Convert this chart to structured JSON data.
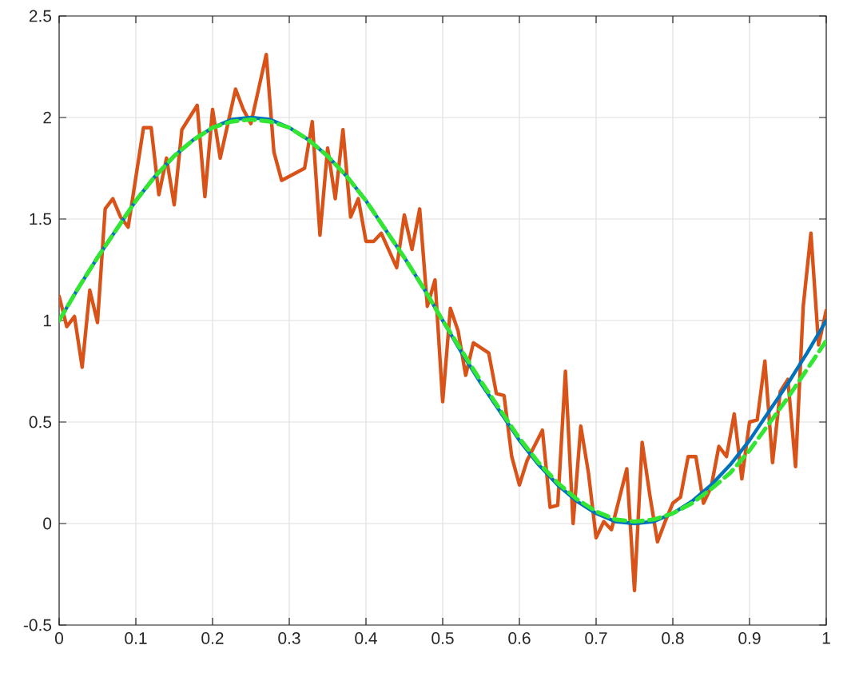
{
  "chart_data": {
    "type": "line",
    "xlim": [
      0,
      1
    ],
    "ylim": [
      -0.5,
      2.5
    ],
    "xticks": [
      0,
      0.1,
      0.2,
      0.3,
      0.4,
      0.5,
      0.6,
      0.7,
      0.8,
      0.9,
      1
    ],
    "yticks": [
      -0.5,
      0,
      0.5,
      1,
      1.5,
      2,
      2.5
    ],
    "grid": true,
    "series": [
      {
        "color": "#d95319",
        "line_style": "solid",
        "x": [
          0,
          0.01,
          0.02,
          0.03,
          0.04,
          0.05,
          0.06,
          0.07,
          0.08,
          0.09,
          0.11,
          0.12,
          0.13,
          0.14,
          0.15,
          0.16,
          0.18,
          0.19,
          0.2,
          0.21,
          0.23,
          0.24,
          0.25,
          0.27,
          0.28,
          0.29,
          0.32,
          0.33,
          0.34,
          0.35,
          0.36,
          0.37,
          0.38,
          0.39,
          0.4,
          0.41,
          0.42,
          0.44,
          0.45,
          0.46,
          0.47,
          0.48,
          0.49,
          0.5,
          0.51,
          0.52,
          0.53,
          0.54,
          0.56,
          0.57,
          0.58,
          0.59,
          0.6,
          0.61,
          0.63,
          0.64,
          0.65,
          0.66,
          0.67,
          0.68,
          0.69,
          0.7,
          0.71,
          0.72,
          0.74,
          0.75,
          0.76,
          0.77,
          0.78,
          0.79,
          0.8,
          0.81,
          0.82,
          0.83,
          0.84,
          0.85,
          0.86,
          0.87,
          0.88,
          0.89,
          0.9,
          0.91,
          0.92,
          0.93,
          0.94,
          0.95,
          0.96,
          0.97,
          0.98,
          0.99,
          1
        ],
        "values": [
          1.12,
          0.97,
          1.02,
          0.77,
          1.15,
          0.99,
          1.55,
          1.6,
          1.51,
          1.46,
          1.95,
          1.95,
          1.62,
          1.8,
          1.57,
          1.94,
          2.06,
          1.61,
          2.04,
          1.8,
          2.14,
          2.04,
          1.97,
          2.31,
          1.83,
          1.69,
          1.75,
          1.98,
          1.42,
          1.85,
          1.6,
          1.94,
          1.51,
          1.6,
          1.39,
          1.39,
          1.43,
          1.26,
          1.52,
          1.35,
          1.55,
          1.07,
          1.2,
          0.6,
          1.06,
          0.95,
          0.73,
          0.89,
          0.84,
          0.64,
          0.63,
          0.33,
          0.19,
          0.31,
          0.46,
          0.08,
          0.09,
          0.75,
          0.0,
          0.48,
          0.25,
          -0.07,
          0.01,
          -0.03,
          0.27,
          -0.33,
          0.4,
          0.14,
          -0.09,
          0.01,
          0.1,
          0.13,
          0.33,
          0.33,
          0.1,
          0.18,
          0.38,
          0.33,
          0.54,
          0.22,
          0.5,
          0.51,
          0.8,
          0.3,
          0.65,
          0.71,
          0.28,
          1.07,
          1.43,
          0.88,
          1.05
        ]
      },
      {
        "color": "#0072bd",
        "line_style": "solid",
        "x": [
          0,
          0.025,
          0.05,
          0.075,
          0.1,
          0.125,
          0.15,
          0.175,
          0.2,
          0.225,
          0.25,
          0.275,
          0.3,
          0.325,
          0.35,
          0.375,
          0.4,
          0.425,
          0.45,
          0.475,
          0.5,
          0.525,
          0.55,
          0.575,
          0.6,
          0.625,
          0.65,
          0.675,
          0.7,
          0.725,
          0.75,
          0.775,
          0.8,
          0.825,
          0.85,
          0.875,
          0.9,
          0.925,
          0.95,
          0.975,
          1
        ],
        "values": [
          1.0,
          1.16,
          1.31,
          1.45,
          1.59,
          1.71,
          1.81,
          1.89,
          1.95,
          1.99,
          2.0,
          1.99,
          1.95,
          1.89,
          1.81,
          1.71,
          1.59,
          1.45,
          1.31,
          1.16,
          1.0,
          0.84,
          0.69,
          0.55,
          0.41,
          0.29,
          0.19,
          0.11,
          0.05,
          0.01,
          0.0,
          0.01,
          0.05,
          0.11,
          0.19,
          0.29,
          0.41,
          0.55,
          0.69,
          0.84,
          1.0
        ]
      },
      {
        "color": "#33e633",
        "line_style": "dashed",
        "x": [
          0,
          0.025,
          0.05,
          0.075,
          0.1,
          0.125,
          0.15,
          0.175,
          0.2,
          0.225,
          0.25,
          0.275,
          0.3,
          0.325,
          0.35,
          0.375,
          0.4,
          0.425,
          0.45,
          0.475,
          0.5,
          0.525,
          0.55,
          0.575,
          0.6,
          0.625,
          0.65,
          0.675,
          0.7,
          0.725,
          0.75,
          0.775,
          0.8,
          0.825,
          0.85,
          0.875,
          0.9,
          0.925,
          0.95,
          0.975,
          1
        ],
        "values": [
          1.0,
          1.16,
          1.31,
          1.45,
          1.59,
          1.71,
          1.81,
          1.89,
          1.95,
          1.98,
          1.99,
          1.98,
          1.95,
          1.89,
          1.81,
          1.71,
          1.59,
          1.45,
          1.31,
          1.16,
          1.0,
          0.85,
          0.7,
          0.56,
          0.42,
          0.3,
          0.2,
          0.12,
          0.06,
          0.02,
          0.01,
          0.02,
          0.05,
          0.1,
          0.17,
          0.25,
          0.36,
          0.49,
          0.62,
          0.76,
          0.9
        ]
      }
    ]
  }
}
